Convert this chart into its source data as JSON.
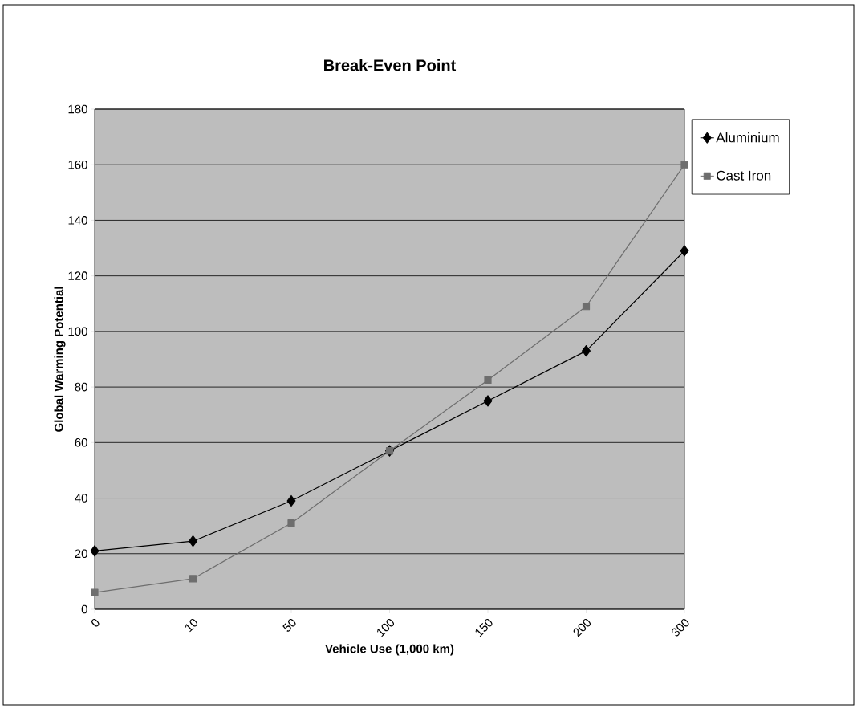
{
  "chart_data": {
    "type": "line",
    "title": "Break-Even Point",
    "xlabel": "Vehicle Use (1,000 km)",
    "ylabel": "Global Warming Potential",
    "categories": [
      "0",
      "10",
      "50",
      "100",
      "150",
      "200",
      "300"
    ],
    "series": [
      {
        "name": "Aluminium",
        "color": "#000000",
        "marker": "diamond",
        "values": [
          21,
          24.5,
          39,
          57,
          75,
          93,
          129
        ]
      },
      {
        "name": "Cast Iron",
        "color": "#6e6e6e",
        "marker": "square",
        "values": [
          6,
          11,
          31,
          57,
          82.5,
          109,
          160
        ]
      }
    ],
    "ylim": [
      0,
      180
    ],
    "yticks": [
      0,
      20,
      40,
      60,
      80,
      100,
      120,
      140,
      160,
      180
    ],
    "grid": "y",
    "legend": "top right",
    "line_style": "solid"
  }
}
